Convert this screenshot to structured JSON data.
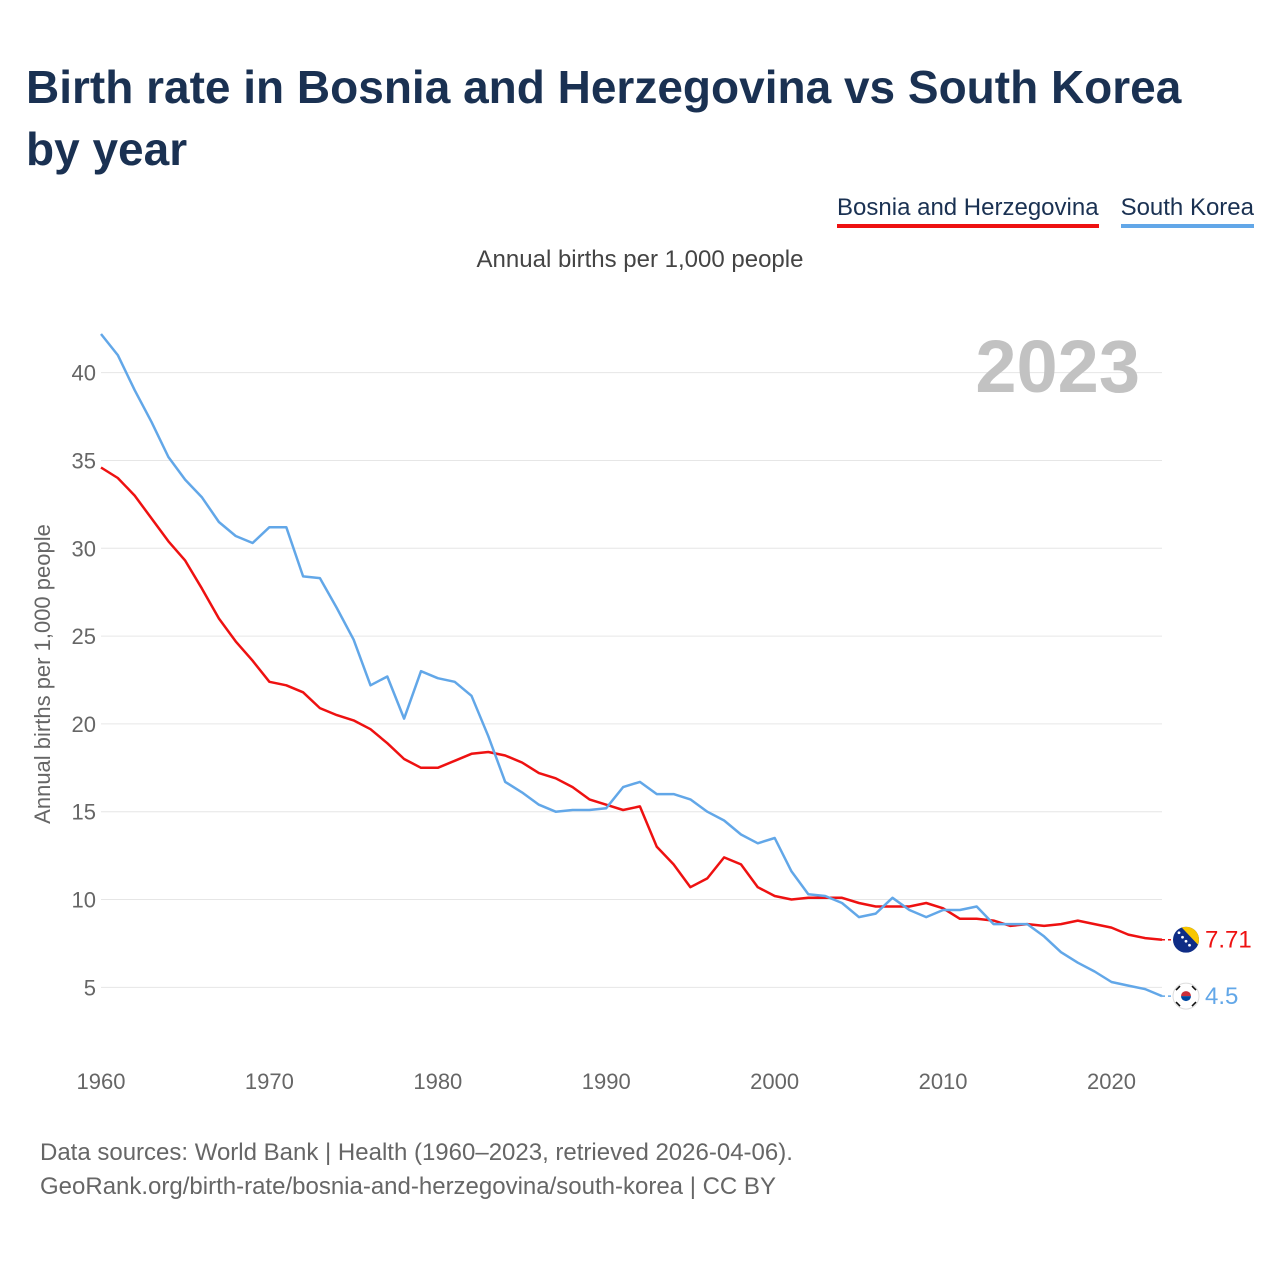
{
  "title": "Birth rate in Bosnia and Herzegovina vs South Korea by year",
  "subtitle": "Annual births per 1,000 people",
  "legend": [
    {
      "label": "Bosnia and Herzegovina",
      "color": "#ee1111"
    },
    {
      "label": "South Korea",
      "color": "#62a7e8"
    }
  ],
  "source_line1": "Data sources: World Bank | Health (1960–2023, retrieved 2026-04-06).",
  "source_line2": "GeoRank.org/birth-rate/bosnia-and-herzegovina/south-korea | CC BY",
  "chart_data": {
    "type": "line",
    "title": "Birth rate in Bosnia and Herzegovina vs South Korea by year",
    "ylabel": "Annual births per 1,000 people",
    "xlabel": "",
    "year_label": "2023",
    "xlim": [
      1960,
      2023
    ],
    "ylim": [
      2,
      43
    ],
    "xticks": [
      1960,
      1970,
      1980,
      1990,
      2000,
      2010,
      2020
    ],
    "yticks": [
      5,
      10,
      15,
      20,
      25,
      30,
      35,
      40
    ],
    "x": [
      1960,
      1961,
      1962,
      1963,
      1964,
      1965,
      1966,
      1967,
      1968,
      1969,
      1970,
      1971,
      1972,
      1973,
      1974,
      1975,
      1976,
      1977,
      1978,
      1979,
      1980,
      1981,
      1982,
      1983,
      1984,
      1985,
      1986,
      1987,
      1988,
      1989,
      1990,
      1991,
      1992,
      1993,
      1994,
      1995,
      1996,
      1997,
      1998,
      1999,
      2000,
      2001,
      2002,
      2003,
      2004,
      2005,
      2006,
      2007,
      2008,
      2009,
      2010,
      2011,
      2012,
      2013,
      2014,
      2015,
      2016,
      2017,
      2018,
      2019,
      2020,
      2021,
      2022,
      2023
    ],
    "series": [
      {
        "name": "Bosnia and Herzegovina",
        "color": "#ee1111",
        "end_label": "7.71",
        "values": [
          34.6,
          34.0,
          33.0,
          31.7,
          30.4,
          29.3,
          27.7,
          26.0,
          24.7,
          23.6,
          22.4,
          22.2,
          21.8,
          20.9,
          20.5,
          20.2,
          19.7,
          18.9,
          18.0,
          17.5,
          17.5,
          17.9,
          18.3,
          18.4,
          18.2,
          17.8,
          17.2,
          16.9,
          16.4,
          15.7,
          15.4,
          15.1,
          15.3,
          13.0,
          12.0,
          10.7,
          11.2,
          12.4,
          12.0,
          10.7,
          10.2,
          10.0,
          10.1,
          10.1,
          10.1,
          9.8,
          9.6,
          9.6,
          9.6,
          9.8,
          9.5,
          8.9,
          8.9,
          8.8,
          8.5,
          8.6,
          8.5,
          8.6,
          8.8,
          8.6,
          8.4,
          8.0,
          7.8,
          7.71
        ]
      },
      {
        "name": "South Korea",
        "color": "#62a7e8",
        "end_label": "4.5",
        "values": [
          42.2,
          41.0,
          39.0,
          37.2,
          35.2,
          33.9,
          32.9,
          31.5,
          30.7,
          30.3,
          31.2,
          31.2,
          28.4,
          28.3,
          26.6,
          24.8,
          22.2,
          22.7,
          20.3,
          23.0,
          22.6,
          22.4,
          21.6,
          19.3,
          16.7,
          16.1,
          15.4,
          15.0,
          15.1,
          15.1,
          15.2,
          16.4,
          16.7,
          16.0,
          16.0,
          15.7,
          15.0,
          14.5,
          13.7,
          13.2,
          13.5,
          11.6,
          10.3,
          10.2,
          9.8,
          9.0,
          9.2,
          10.1,
          9.4,
          9.0,
          9.4,
          9.4,
          9.6,
          8.6,
          8.6,
          8.6,
          7.9,
          7.0,
          6.4,
          5.9,
          5.3,
          5.1,
          4.9,
          4.5
        ]
      }
    ]
  }
}
